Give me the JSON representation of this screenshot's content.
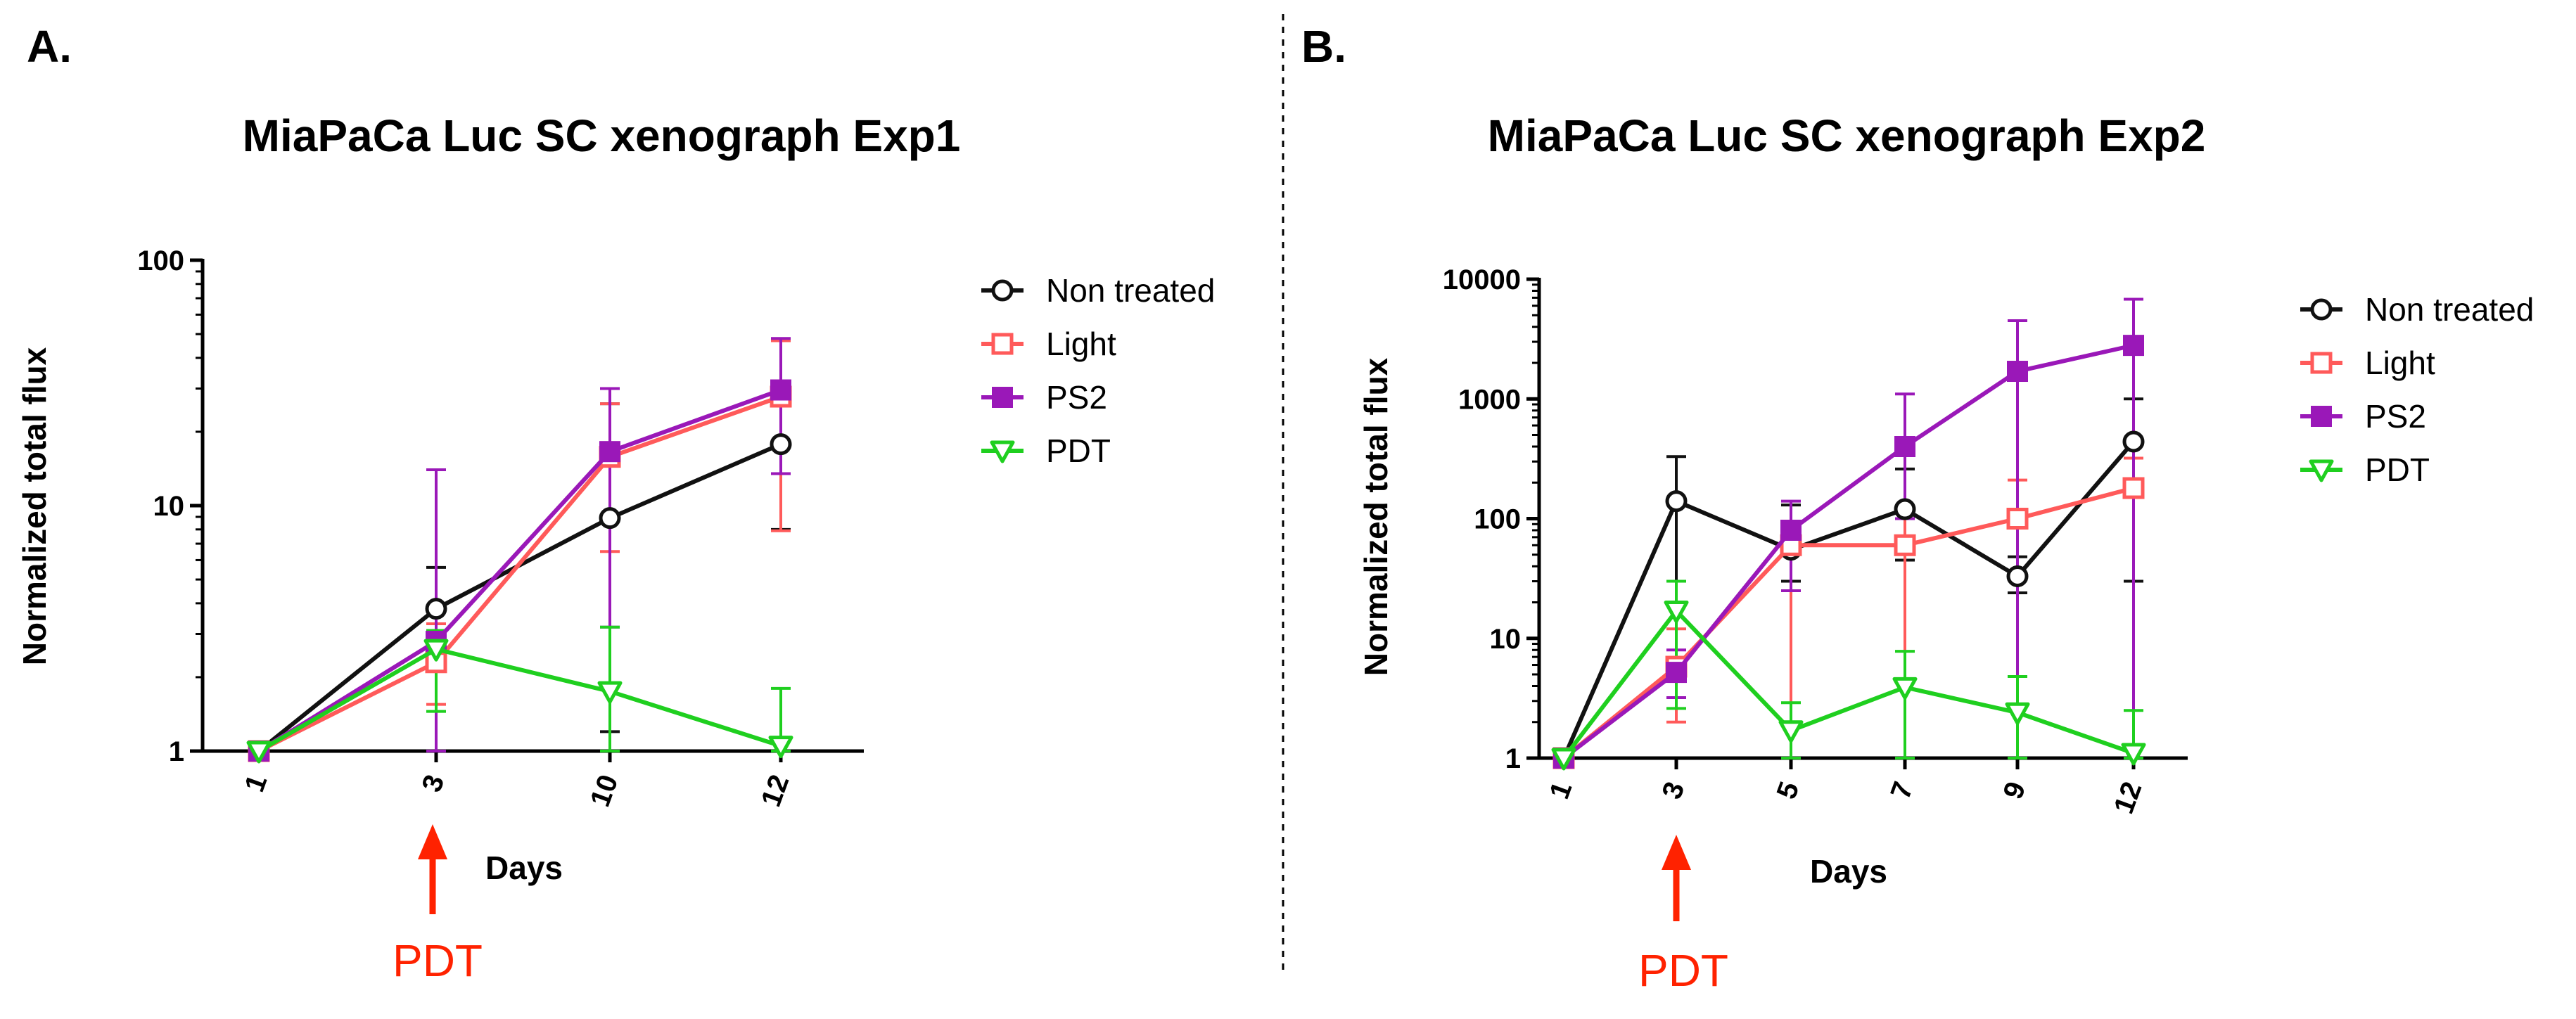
{
  "figure": {
    "panel_a_label": "A.",
    "panel_b_label": "B."
  },
  "annotation": {
    "pdt_label": "PDT",
    "arrow_color": "#ff2200"
  },
  "colors": {
    "Non treated": "#111111",
    "Light": "#ff5a5a",
    "PS2": "#9a18b8",
    "PDT": "#1fcf1f"
  },
  "chart_data": [
    {
      "type": "line",
      "title": "MiaPaCa Luc SC xenograph Exp1",
      "xlabel": "Days",
      "ylabel": "Normalized total flux",
      "yscale": "log",
      "ylim": [
        1,
        100
      ],
      "yticks": [
        "1",
        "10",
        "100"
      ],
      "categories": [
        "1",
        "3",
        "10",
        "12"
      ],
      "legend_position": "right",
      "series": [
        {
          "name": "Non treated",
          "marker": "circle-open",
          "values": [
            1,
            3.8,
            8.9,
            17.8
          ],
          "err_up": [
            1,
            5.6,
            26,
            31
          ],
          "err_low": [
            1,
            2.2,
            1.2,
            8
          ]
        },
        {
          "name": "Light",
          "marker": "square-open",
          "values": [
            1,
            2.3,
            15.8,
            27.8
          ],
          "err_up": [
            1,
            3.3,
            26,
            47
          ],
          "err_low": [
            1,
            1.55,
            6.5,
            7.9
          ]
        },
        {
          "name": "PS2",
          "marker": "square-filled",
          "values": [
            1,
            2.8,
            16.6,
            29.6
          ],
          "err_up": [
            1,
            14,
            30,
            48
          ],
          "err_low": [
            1,
            1.0,
            3.2,
            13.5
          ]
        },
        {
          "name": "PDT",
          "marker": "triangle-down-open",
          "values": [
            1,
            2.6,
            1.75,
            1.05
          ],
          "err_up": [
            1,
            3.1,
            3.2,
            1.8
          ],
          "err_low": [
            1,
            1.45,
            1.0,
            1.0
          ]
        }
      ]
    },
    {
      "type": "line",
      "title": "MiaPaCa Luc SC xenograph Exp2",
      "xlabel": "Days",
      "ylabel": "Normalized total flux",
      "yscale": "log",
      "ylim": [
        1,
        10000
      ],
      "yticks": [
        "1",
        "10",
        "100",
        "1000",
        "10000"
      ],
      "categories": [
        "1",
        "3",
        "5",
        "7",
        "9",
        "12"
      ],
      "legend_position": "right",
      "series": [
        {
          "name": "Non treated",
          "marker": "circle-open",
          "values": [
            1,
            140,
            55,
            120,
            33,
            440
          ],
          "err_up": [
            1,
            330,
            130,
            260,
            48,
            1000
          ],
          "err_low": [
            1,
            30,
            30,
            45,
            24,
            30
          ]
        },
        {
          "name": "Light",
          "marker": "square-open",
          "values": [
            1,
            5.8,
            60,
            60,
            100,
            180
          ],
          "err_up": [
            1,
            12,
            95,
            100,
            210,
            320
          ],
          "err_low": [
            1,
            2.0,
            1.0,
            1.0,
            1.0,
            1.0
          ]
        },
        {
          "name": "PS2",
          "marker": "square-filled",
          "values": [
            1,
            5.2,
            80,
            400,
            1700,
            2800
          ],
          "err_up": [
            1,
            8,
            140,
            1100,
            4500,
            6800
          ],
          "err_low": [
            1,
            3.2,
            25,
            100,
            1.0,
            1.0
          ]
        },
        {
          "name": "PDT",
          "marker": "triangle-down-open",
          "values": [
            1,
            17,
            1.7,
            3.9,
            2.4,
            1.1
          ],
          "err_up": [
            1,
            30,
            2.9,
            7.8,
            4.8,
            2.5
          ],
          "err_low": [
            1,
            2.6,
            1.0,
            1.0,
            1.0,
            1.0
          ]
        }
      ]
    }
  ]
}
